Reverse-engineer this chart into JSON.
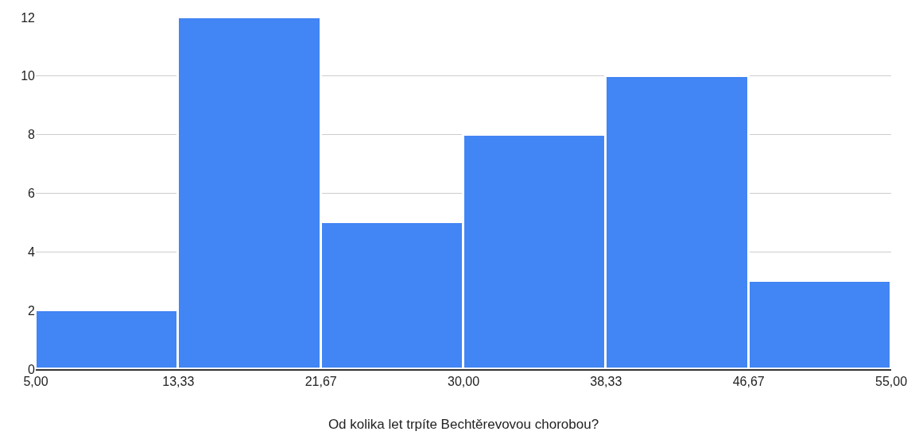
{
  "chart_data": {
    "type": "histogram",
    "xlabel": "Od kolika let trpíte Bechtěrevovou chorobou?",
    "bins": [
      5,
      13.33,
      21.67,
      30,
      38.33,
      46.67,
      55
    ],
    "values": [
      2,
      12,
      5,
      8,
      10,
      3
    ],
    "color": "#4285f4",
    "xlim": [
      5,
      55
    ],
    "xticks": [
      {
        "value": 5,
        "label": "5,00"
      },
      {
        "value": 13.33,
        "label": "13,33"
      },
      {
        "value": 21.67,
        "label": "21,67"
      },
      {
        "value": 30,
        "label": "30,00"
      },
      {
        "value": 38.33,
        "label": "38,33"
      },
      {
        "value": 46.67,
        "label": "46,67"
      },
      {
        "value": 55,
        "label": "55,00"
      }
    ],
    "ylim": [
      0,
      12
    ],
    "yticks": [
      0,
      2,
      4,
      6,
      8,
      10,
      12
    ],
    "grid": "y"
  }
}
